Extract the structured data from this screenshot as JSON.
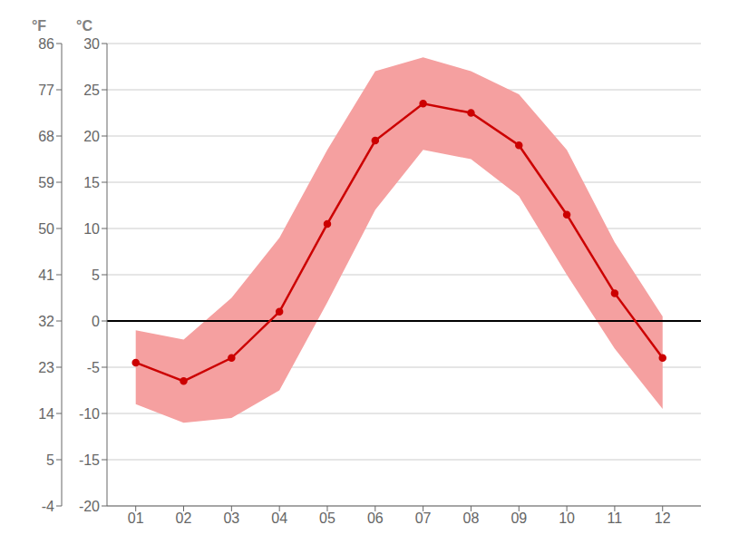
{
  "chart_data": {
    "type": "line",
    "x": [
      1,
      2,
      3,
      4,
      5,
      6,
      7,
      8,
      9,
      10,
      11,
      12
    ],
    "xlim": [
      0.4,
      12.8
    ],
    "xticks": [
      {
        "value": 1,
        "label": "01"
      },
      {
        "value": 2,
        "label": "02"
      },
      {
        "value": 3,
        "label": "03"
      },
      {
        "value": 4,
        "label": "04"
      },
      {
        "value": 5,
        "label": "05"
      },
      {
        "value": 6,
        "label": "06"
      },
      {
        "value": 7,
        "label": "07"
      },
      {
        "value": 8,
        "label": "08"
      },
      {
        "value": 9,
        "label": "09"
      },
      {
        "value": 10,
        "label": "10"
      },
      {
        "value": 11,
        "label": "11"
      },
      {
        "value": 12,
        "label": "12"
      }
    ],
    "ylabel": "°C",
    "ylim": [
      -20,
      30
    ],
    "yticks": [
      -20,
      -15,
      -10,
      -5,
      0,
      5,
      10,
      15,
      20,
      25,
      30
    ],
    "y2label": "°F",
    "y2lim": [
      -4,
      86
    ],
    "y2ticks": [
      -4,
      5,
      14,
      23,
      32,
      41,
      50,
      59,
      68,
      77,
      86
    ],
    "grid": true,
    "series": [
      {
        "type": "area",
        "color": "#f5a0a0",
        "low": [
          -9.0,
          -11.0,
          -10.5,
          -7.5,
          2.0,
          12.0,
          18.5,
          17.5,
          13.5,
          5.0,
          -3.0,
          -9.5
        ],
        "high": [
          -1.0,
          -2.0,
          2.5,
          9.0,
          18.5,
          27.0,
          28.5,
          27.0,
          24.5,
          18.5,
          8.5,
          0.5
        ]
      },
      {
        "type": "line",
        "color": "#cc0000",
        "marker": "circle",
        "values": [
          -4.5,
          -6.5,
          -4.0,
          1.0,
          10.5,
          19.5,
          23.5,
          22.5,
          19.0,
          11.5,
          3.0,
          -4.0
        ]
      }
    ]
  }
}
